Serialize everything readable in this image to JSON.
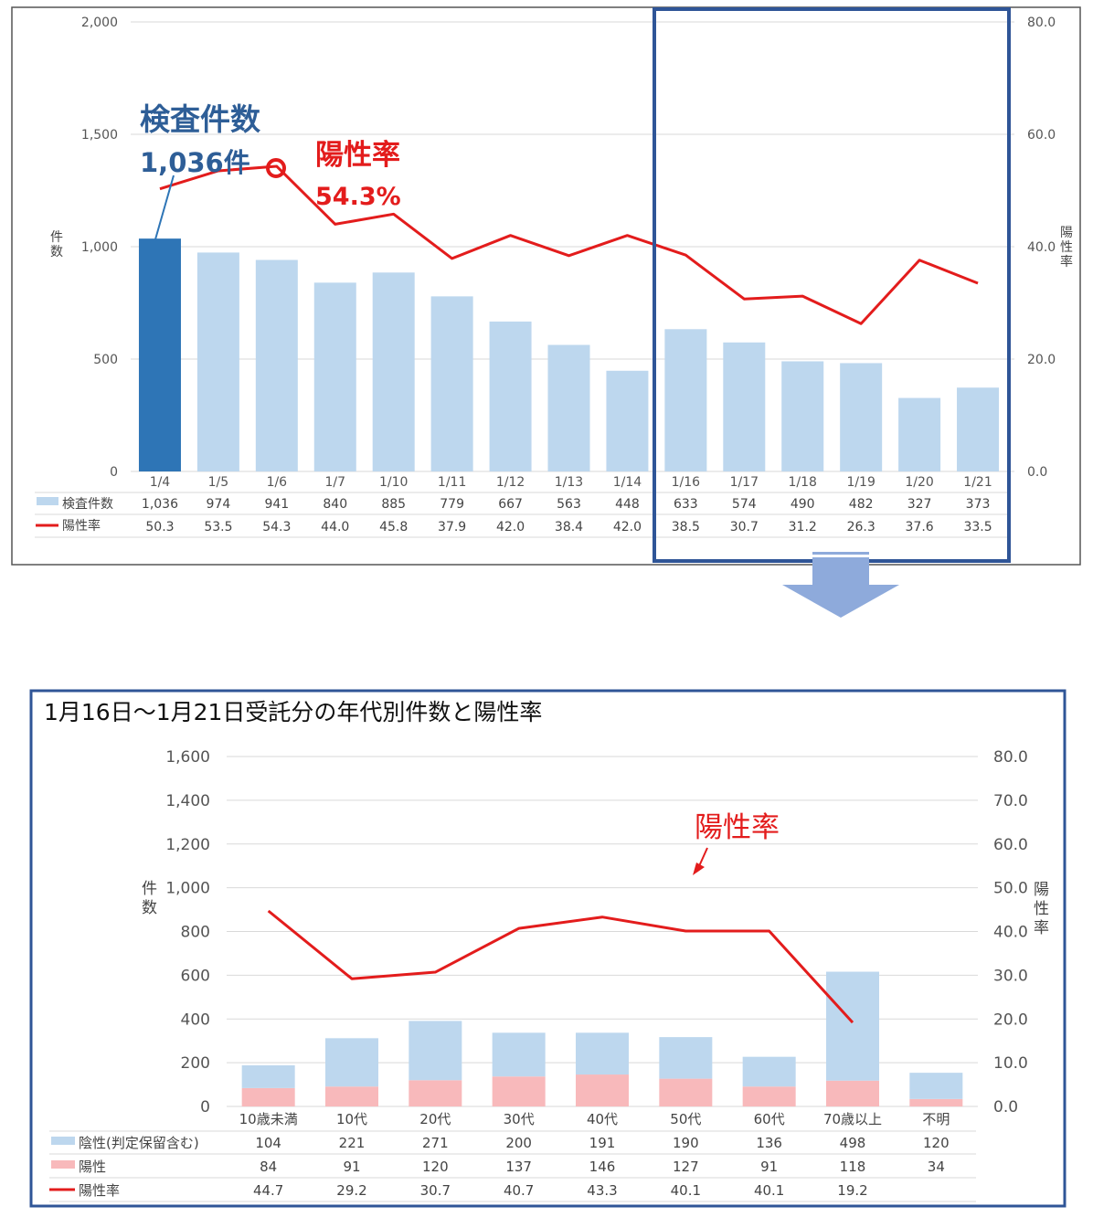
{
  "chart_data": [
    {
      "type": "bar",
      "title": "",
      "categories": [
        "1/4",
        "1/5",
        "1/6",
        "1/7",
        "1/10",
        "1/11",
        "1/12",
        "1/13",
        "1/14",
        "1/16",
        "1/17",
        "1/18",
        "1/19",
        "1/20",
        "1/21"
      ],
      "ylabel": "件数",
      "ylabel_right": "陽性率",
      "ylim": [
        0,
        2000
      ],
      "ylim_right": [
        0,
        80
      ],
      "yticks": [
        "0",
        "500",
        "1,000",
        "1,500",
        "2,000"
      ],
      "yticks_right": [
        "0.0",
        "20.0",
        "40.0",
        "60.0",
        "80.0"
      ],
      "series": [
        {
          "name": "検査件数",
          "type": "bar",
          "axis": "left",
          "values": [
            1036,
            974,
            941,
            840,
            885,
            779,
            667,
            563,
            448,
            633,
            574,
            490,
            482,
            327,
            373
          ],
          "labels": [
            "1,036",
            "974",
            "941",
            "840",
            "885",
            "779",
            "667",
            "563",
            "448",
            "633",
            "574",
            "490",
            "482",
            "327",
            "373"
          ]
        },
        {
          "name": "陽性率",
          "type": "line",
          "axis": "right",
          "values": [
            50.3,
            53.5,
            54.3,
            44.0,
            45.8,
            37.9,
            42.0,
            38.4,
            42.0,
            38.5,
            30.7,
            31.2,
            26.3,
            37.6,
            33.5
          ],
          "labels": [
            "50.3",
            "53.5",
            "54.3",
            "44.0",
            "45.8",
            "37.9",
            "42.0",
            "38.4",
            "42.0",
            "38.5",
            "30.7",
            "31.2",
            "26.3",
            "37.6",
            "33.5"
          ]
        }
      ],
      "highlight_index": 0,
      "highlight_range": [
        "1/16",
        "1/21"
      ],
      "annotations": {
        "count_title": "検査件数",
        "count_value": "1,036件",
        "rate_title": "陽性率",
        "rate_value": "54.3%"
      },
      "grid": true,
      "colors": {
        "bar": "#bdd7ee",
        "bar_highlight": "#2e75b6",
        "line": "#e31c1c",
        "count_text": "#2e5e97",
        "frame": "#2f5597"
      }
    },
    {
      "type": "bar",
      "title": "1月16日～1月21日受託分の年代別件数と陽性率",
      "categories": [
        "10歳未満",
        "10代",
        "20代",
        "30代",
        "40代",
        "50代",
        "60代",
        "70歳以上",
        "不明"
      ],
      "ylabel": "件数",
      "ylabel_right": "陽性率",
      "ylim": [
        0,
        1600
      ],
      "ylim_right": [
        0,
        80
      ],
      "yticks": [
        "0",
        "200",
        "400",
        "600",
        "800",
        "1,000",
        "1,200",
        "1,400",
        "1,600"
      ],
      "yticks_right": [
        "0.0",
        "10.0",
        "20.0",
        "30.0",
        "40.0",
        "50.0",
        "60.0",
        "70.0",
        "80.0"
      ],
      "stacked": true,
      "series": [
        {
          "name": "陰性(判定保留含む)",
          "type": "bar",
          "axis": "left",
          "values": [
            104,
            221,
            271,
            200,
            191,
            190,
            136,
            498,
            120
          ],
          "labels": [
            "104",
            "221",
            "271",
            "200",
            "191",
            "190",
            "136",
            "498",
            "120"
          ]
        },
        {
          "name": "陽性",
          "type": "bar",
          "axis": "left",
          "values": [
            84,
            91,
            120,
            137,
            146,
            127,
            91,
            118,
            34
          ],
          "labels": [
            "84",
            "91",
            "120",
            "137",
            "146",
            "127",
            "91",
            "118",
            "34"
          ]
        },
        {
          "name": "陽性率",
          "type": "line",
          "axis": "right",
          "values": [
            44.7,
            29.2,
            30.7,
            40.7,
            43.3,
            40.1,
            40.1,
            19.2,
            null
          ],
          "labels": [
            "44.7",
            "29.2",
            "30.7",
            "40.7",
            "43.3",
            "40.1",
            "40.1",
            "19.2",
            ""
          ]
        }
      ],
      "annotations": {
        "rate_title": "陽性率"
      },
      "grid": true,
      "colors": {
        "negative": "#bdd7ee",
        "positive": "#f8b9bb",
        "line": "#e31c1c",
        "frame": "#2f5597",
        "arrow": "#8eaadb"
      }
    }
  ]
}
